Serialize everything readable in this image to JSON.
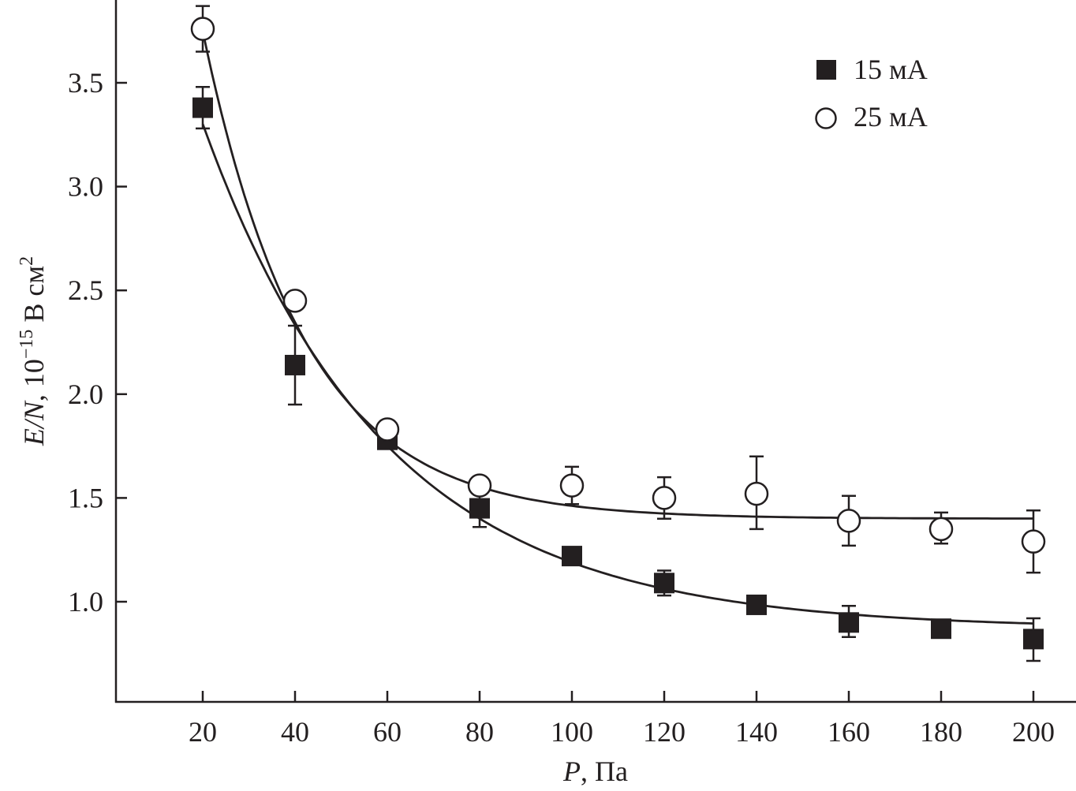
{
  "chart_data": {
    "type": "scatter",
    "title": "",
    "xlabel": {
      "italic": "P",
      "rest": ", Па"
    },
    "ylabel": {
      "italic": "E/N",
      "rest": ", 10",
      "sup1": "−15",
      "unit": " В см",
      "sup2": "2"
    },
    "xlim": [
      1.2,
      208
    ],
    "ylim": [
      0.52,
      3.9
    ],
    "x_ticks": [
      20,
      40,
      60,
      80,
      100,
      120,
      140,
      160,
      180,
      200
    ],
    "y_ticks": [
      "1.0",
      "1.5",
      "2.0",
      "2.5",
      "3.0",
      "3.5"
    ],
    "grid": false,
    "legend_position": "top-right",
    "series": [
      {
        "name": "15 мА",
        "marker": "filled-square",
        "x": [
          20,
          40,
          60,
          80,
          100,
          120,
          140,
          160,
          180,
          200
        ],
        "y": [
          3.38,
          2.14,
          1.78,
          1.45,
          1.22,
          1.09,
          0.985,
          0.9,
          0.87,
          0.82
        ],
        "err_low": [
          3.28,
          1.95,
          null,
          1.36,
          null,
          1.03,
          null,
          0.83,
          null,
          0.715
        ],
        "err_high": [
          3.48,
          2.33,
          null,
          1.54,
          null,
          1.15,
          null,
          0.98,
          null,
          0.92
        ],
        "fit": {
          "type": "exponential-decay",
          "y0": 0.87,
          "A": 4.04,
          "t": 39.4
        }
      },
      {
        "name": "25 мА",
        "marker": "open-circle",
        "x": [
          20,
          40,
          60,
          80,
          100,
          120,
          140,
          160,
          180,
          200
        ],
        "y": [
          3.76,
          2.45,
          1.83,
          1.56,
          1.56,
          1.5,
          1.52,
          1.39,
          1.35,
          1.29
        ],
        "err_low": [
          3.65,
          null,
          null,
          null,
          1.47,
          1.4,
          1.35,
          1.27,
          1.28,
          1.14
        ],
        "err_high": [
          3.87,
          null,
          null,
          null,
          1.65,
          1.6,
          1.7,
          1.51,
          1.43,
          1.44
        ],
        "fit": {
          "type": "exponential-decay",
          "y0": 1.4,
          "A": 5.83,
          "t": 22
        }
      }
    ]
  }
}
